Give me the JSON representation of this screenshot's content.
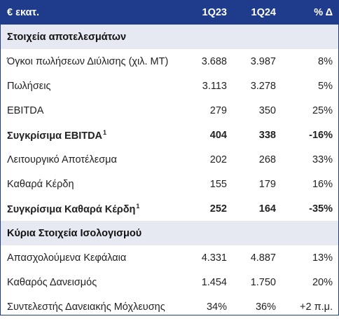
{
  "header": {
    "unit": "€ εκατ.",
    "col1": "1Q23",
    "col2": "1Q24",
    "col3": "% Δ"
  },
  "sections": [
    {
      "title": "Στοιχεία αποτελεσμάτων"
    },
    {
      "title": "Κύρια Στοιχεία Ισολογισμού"
    }
  ],
  "rows": [
    {
      "label": "Όγκοι πωλήσεων Διύλισης (χιλ. ΜΤ)",
      "note": "",
      "v1": "3.688",
      "v2": "3.987",
      "v3": "8%"
    },
    {
      "label": "Πωλήσεις",
      "note": "",
      "v1": "3.113",
      "v2": "3.278",
      "v3": "5%"
    },
    {
      "label": "EBITDA",
      "note": "",
      "v1": "279",
      "v2": "350",
      "v3": "25%"
    },
    {
      "label": "Συγκρίσιμα EBITDA",
      "note": "1",
      "v1": "404",
      "v2": "338",
      "v3": "-16%"
    },
    {
      "label": "Λειτουργικό Αποτέλεσμα",
      "note": "",
      "v1": "202",
      "v2": "268",
      "v3": "33%"
    },
    {
      "label": "Καθαρά Κέρδη",
      "note": "",
      "v1": "155",
      "v2": "179",
      "v3": "16%"
    },
    {
      "label": "Συγκρίσιμα Καθαρά Κέρδη",
      "note": "1",
      "v1": "252",
      "v2": "164",
      "v3": "-35%"
    },
    {
      "label": "Απασχολούμενα Κεφάλαια",
      "note": "",
      "v1": "4.331",
      "v2": "4.887",
      "v3": "13%"
    },
    {
      "label": "Καθαρός Δανεισμός",
      "note": "",
      "v1": "1.454",
      "v2": "1.750",
      "v3": "20%"
    },
    {
      "label": "Συντελεστής Δανειακής Μόχλευσης",
      "note": "",
      "v1": "34%",
      "v2": "36%",
      "v3": "+2 π.μ."
    }
  ],
  "colors": {
    "header_bg": "#1f3b8c",
    "section_bg": "#e6e8f2"
  }
}
